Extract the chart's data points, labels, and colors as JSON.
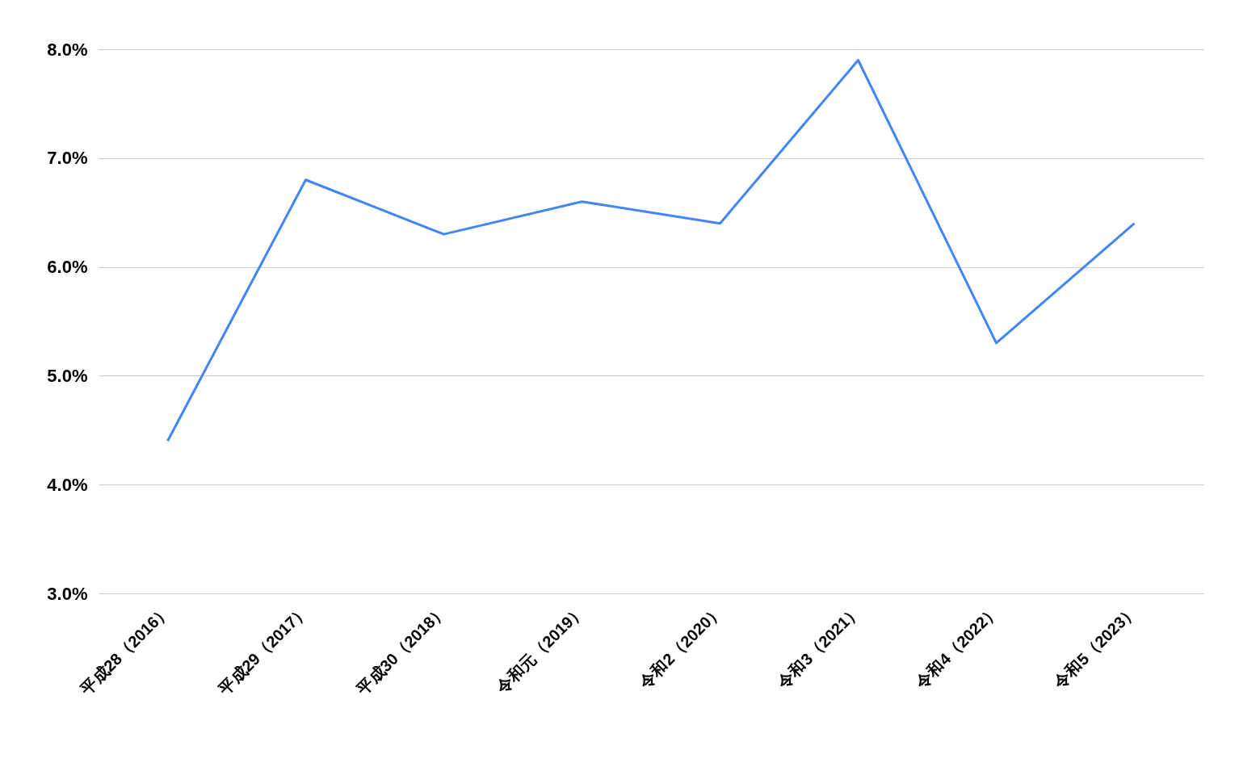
{
  "chart_data": {
    "type": "line",
    "categories": [
      "平成28（2016）",
      "平成29（2017）",
      "平成30（2018）",
      "令和元（2019）",
      "令和2（2020）",
      "令和3（2021）",
      "令和4（2022）",
      "令和5（2023）"
    ],
    "series": [
      {
        "color": "#4285f4",
        "values": [
          4.4,
          6.8,
          6.3,
          6.6,
          6.4,
          7.9,
          5.3,
          6.4
        ]
      }
    ],
    "ylim": [
      3,
      8
    ],
    "yticks": [
      {
        "value": 3,
        "label": "3.0%"
      },
      {
        "value": 4,
        "label": "4.0%"
      },
      {
        "value": 5,
        "label": "5.0%"
      },
      {
        "value": 6,
        "label": "6.0%"
      },
      {
        "value": 7,
        "label": "7.0%"
      },
      {
        "value": 8,
        "label": "8.0%"
      }
    ],
    "grid": "y",
    "marker": "none",
    "line_style": "solid"
  }
}
